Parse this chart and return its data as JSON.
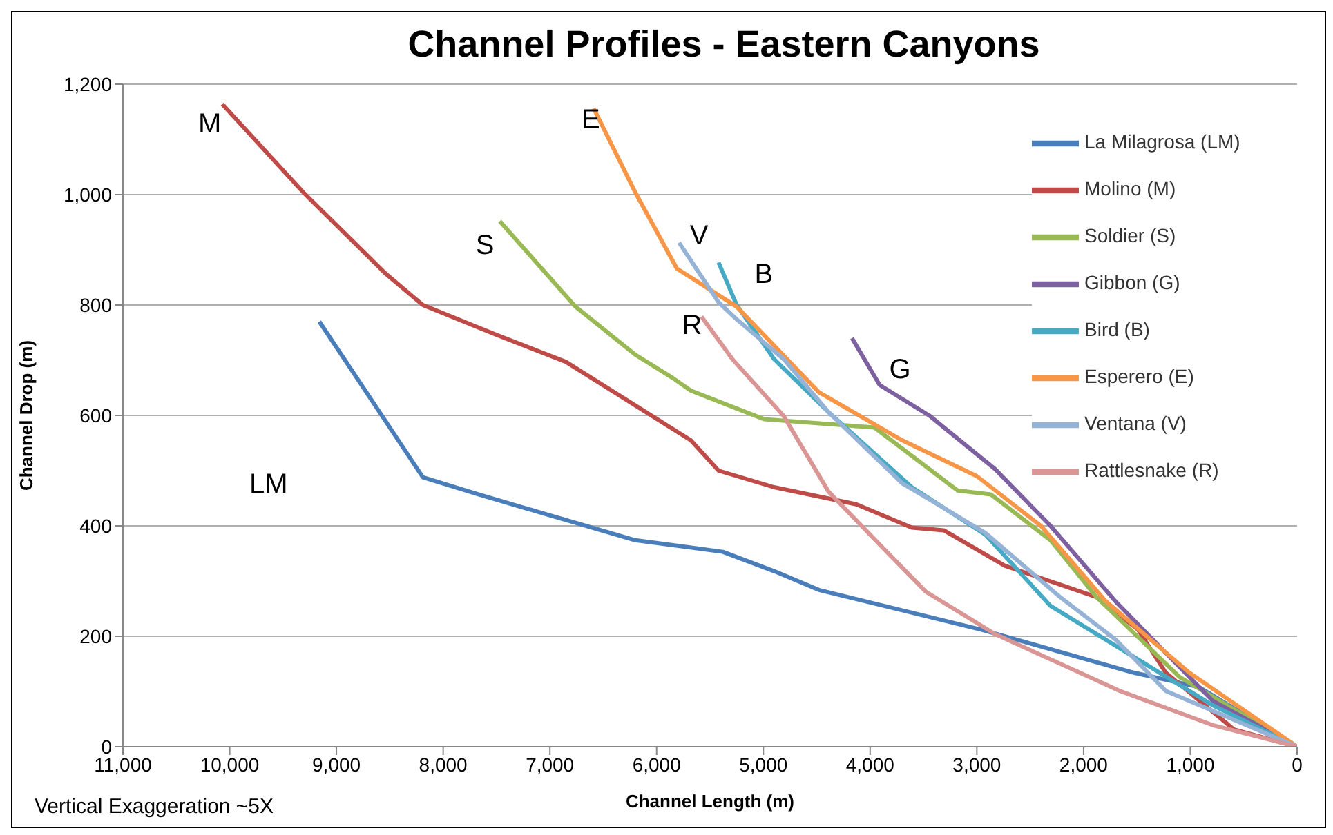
{
  "chart_data": {
    "type": "line",
    "title": "Channel Profiles - Eastern Canyons",
    "xlabel": "Channel Length (m)",
    "ylabel": "Channel Drop (m)",
    "xlim": [
      11000,
      0
    ],
    "xticks": [
      {
        "value": 11000,
        "label": "11,000"
      },
      {
        "value": 10000,
        "label": "10,000"
      },
      {
        "value": 9000,
        "label": "9,000"
      },
      {
        "value": 8000,
        "label": "8,000"
      },
      {
        "value": 7000,
        "label": "7,000"
      },
      {
        "value": 6000,
        "label": "6,000"
      },
      {
        "value": 5000,
        "label": "5,000"
      },
      {
        "value": 4000,
        "label": "4,000"
      },
      {
        "value": 3000,
        "label": "3,000"
      },
      {
        "value": 2000,
        "label": "2,000"
      },
      {
        "value": 1000,
        "label": "1,000"
      },
      0
    ],
    "ylim": [
      0,
      1200
    ],
    "yticks": [
      0,
      200,
      400,
      600,
      800,
      {
        "value": 1000,
        "label": "1,000"
      },
      {
        "value": 1200,
        "label": "1,200"
      }
    ],
    "grid": "y",
    "legend": "top right",
    "marker": "none",
    "line_style": "solid",
    "series": [
      {
        "name": "La Milagrosa (LM)",
        "color": "#4a7ebb",
        "x": [
          9160,
          8190,
          7670,
          7070,
          6200,
          5380,
          4900,
          4480,
          2960,
          1530,
          920,
          0
        ],
        "values": [
          770,
          488,
          457,
          423,
          374,
          353,
          318,
          284,
          212,
          134,
          108,
          0
        ]
      },
      {
        "name": "Molino (M)",
        "color": "#be4b48",
        "x": [
          10070,
          9310,
          8540,
          8190,
          7500,
          6850,
          5680,
          5420,
          4900,
          4130,
          3610,
          3310,
          2740,
          1880,
          1490,
          1230,
          590,
          0
        ],
        "values": [
          1164,
          1004,
          857,
          800,
          746,
          697,
          555,
          500,
          470,
          439,
          397,
          392,
          328,
          271,
          212,
          134,
          31,
          0
        ]
      },
      {
        "name": "Soldier (S)",
        "color": "#98b954",
        "x": [
          7470,
          6760,
          6200,
          5850,
          5680,
          4990,
          3960,
          3870,
          3180,
          2870,
          2310,
          1880,
          1100,
          0
        ],
        "values": [
          952,
          797,
          710,
          668,
          645,
          593,
          578,
          565,
          464,
          457,
          374,
          271,
          126,
          0
        ]
      },
      {
        "name": "Gibbon (G)",
        "color": "#7d60a0",
        "x": [
          4170,
          3910,
          3440,
          2830,
          2310,
          1700,
          1140,
          790,
          0
        ],
        "values": [
          740,
          655,
          599,
          503,
          400,
          263,
          152,
          83,
          0
        ]
      },
      {
        "name": "Bird (B)",
        "color": "#46aac5",
        "x": [
          5420,
          5250,
          4900,
          4390,
          3610,
          2920,
          2310,
          1440,
          790,
          0
        ],
        "values": [
          877,
          800,
          702,
          606,
          470,
          384,
          255,
          152,
          75,
          0
        ]
      },
      {
        "name": "Esperero (E)",
        "color": "#f79646",
        "x": [
          6590,
          6200,
          5810,
          5250,
          4480,
          3700,
          3000,
          2400,
          1790,
          1010,
          0
        ],
        "values": [
          1156,
          1004,
          866,
          797,
          642,
          555,
          490,
          400,
          263,
          134,
          0
        ]
      },
      {
        "name": "Ventana (V)",
        "color": "#95b3d7",
        "x": [
          5790,
          5420,
          5250,
          4810,
          4390,
          3700,
          3480,
          2920,
          2220,
          1700,
          1230,
          0
        ],
        "values": [
          913,
          805,
          774,
          702,
          606,
          477,
          452,
          387,
          271,
          194,
          101,
          0
        ]
      },
      {
        "name": "Rattlesnake (R)",
        "color": "#d99694",
        "x": [
          5580,
          5290,
          4810,
          4390,
          3910,
          3480,
          2830,
          1660,
          790,
          0
        ],
        "values": [
          779,
          702,
          599,
          462,
          366,
          281,
          204,
          101,
          39,
          0
        ]
      }
    ],
    "annotations": [
      "LM",
      "M",
      "S",
      "G",
      "B",
      "E",
      "V",
      "R",
      "Vertical Exaggeration ~5X"
    ]
  }
}
